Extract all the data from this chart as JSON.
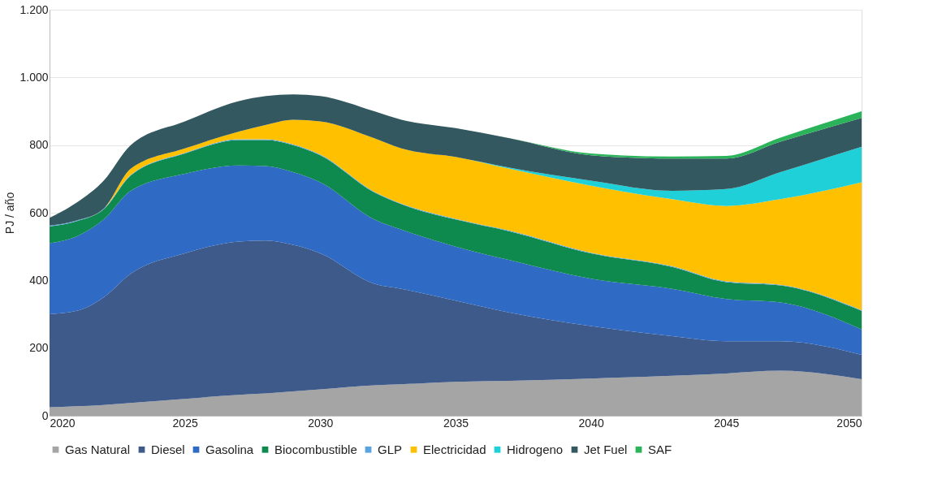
{
  "chart_data": {
    "type": "area",
    "stacked": true,
    "ylabel": "PJ / año",
    "x": [
      2020,
      2021,
      2022,
      2023,
      2025,
      2027,
      2028,
      2029,
      2030,
      2032,
      2033,
      2035,
      2037,
      2040,
      2043,
      2045,
      2047,
      2050
    ],
    "xlim": [
      2020,
      2050
    ],
    "xticks": [
      2020,
      2025,
      2030,
      2035,
      2040,
      2045,
      2050
    ],
    "ylim": [
      0,
      1200
    ],
    "yticks": [
      0,
      200,
      400,
      600,
      800,
      {
        "value": 1000,
        "label": "1.000"
      },
      {
        "value": 1200,
        "label": "1.200"
      }
    ],
    "grid": "y",
    "legend": "bottom",
    "series": [
      {
        "name": "Gas Natural",
        "color": "#a5a5a5",
        "values": [
          25,
          28,
          32,
          38,
          50,
          62,
          66,
          72,
          78,
          90,
          93,
          100,
          103,
          110,
          118,
          125,
          133,
          108
        ]
      },
      {
        "name": "Diesel",
        "color": "#3d5a8a",
        "values": [
          275,
          282,
          318,
          382,
          430,
          453,
          452,
          433,
          402,
          300,
          282,
          240,
          202,
          155,
          117,
          95,
          87,
          72
        ]
      },
      {
        "name": "Gasolina",
        "color": "#2f6bc4",
        "values": [
          210,
          220,
          230,
          245,
          235,
          225,
          220,
          215,
          210,
          190,
          175,
          160,
          155,
          140,
          140,
          125,
          115,
          75
        ]
      },
      {
        "name": "Biocombustible",
        "color": "#0e8a4f",
        "values": [
          50,
          45,
          30,
          45,
          60,
          75,
          77,
          80,
          80,
          80,
          75,
          80,
          85,
          75,
          65,
          50,
          50,
          55
        ]
      },
      {
        "name": "GLP",
        "color": "#5ba3e0",
        "values": [
          2,
          2,
          2,
          2,
          2,
          2,
          2,
          2,
          2,
          2,
          2,
          2,
          2,
          2,
          2,
          2,
          2,
          2
        ]
      },
      {
        "name": "Electricidad",
        "color": "#ffc000",
        "values": [
          0,
          0,
          0,
          18,
          13,
          23,
          43,
          73,
          98,
          158,
          163,
          183,
          183,
          198,
          198,
          223,
          253,
          378
        ]
      },
      {
        "name": "Hidrogeno",
        "color": "#1fd0d8",
        "values": [
          0,
          0,
          0,
          0,
          0,
          0,
          0,
          0,
          0,
          0,
          0,
          0,
          3,
          15,
          25,
          50,
          80,
          105
        ]
      },
      {
        "name": "Jet Fuel",
        "color": "#33585f",
        "values": [
          23,
          53,
          83,
          70,
          80,
          90,
          85,
          75,
          75,
          80,
          85,
          85,
          87,
          75,
          95,
          90,
          90,
          85
        ]
      },
      {
        "name": "SAF",
        "color": "#2bb35a",
        "values": [
          0,
          0,
          0,
          0,
          0,
          0,
          0,
          0,
          0,
          0,
          0,
          0,
          0,
          5,
          6,
          8,
          12,
          20
        ]
      }
    ]
  }
}
